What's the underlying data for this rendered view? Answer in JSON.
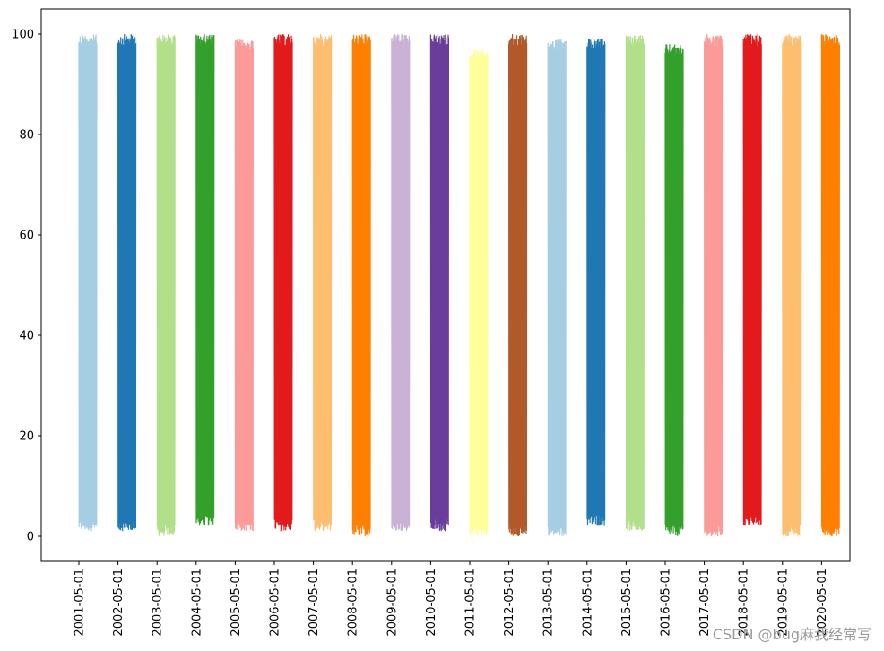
{
  "chart_data": {
    "type": "line",
    "title": "",
    "xlabel": "",
    "ylabel": "",
    "ylim": [
      -5,
      105
    ],
    "grid": false,
    "legend": "none",
    "y_ticks": [
      0,
      20,
      40,
      60,
      80,
      100
    ],
    "categories": [
      "2001-05-01",
      "2002-05-01",
      "2003-05-01",
      "2004-05-01",
      "2005-05-01",
      "2006-05-01",
      "2007-05-01",
      "2008-05-01",
      "2009-05-01",
      "2010-05-01",
      "2011-05-01",
      "2012-05-01",
      "2013-05-01",
      "2014-05-01",
      "2015-05-01",
      "2016-05-01",
      "2017-05-01",
      "2018-05-01",
      "2019-05-01",
      "2020-05-01"
    ],
    "series": [
      {
        "name": "2001",
        "color": "#a6cee3",
        "min": 1,
        "max": 100
      },
      {
        "name": "2002",
        "color": "#1f78b4",
        "min": 1,
        "max": 100
      },
      {
        "name": "2003",
        "color": "#b2df8a",
        "min": 0,
        "max": 100
      },
      {
        "name": "2004",
        "color": "#33a02c",
        "min": 2,
        "max": 100
      },
      {
        "name": "2005",
        "color": "#fb9a99",
        "min": 1,
        "max": 99
      },
      {
        "name": "2006",
        "color": "#e31a1c",
        "min": 1,
        "max": 100
      },
      {
        "name": "2007",
        "color": "#fdbf6f",
        "min": 1,
        "max": 100
      },
      {
        "name": "2008",
        "color": "#ff7f00",
        "min": 0,
        "max": 100
      },
      {
        "name": "2009",
        "color": "#cab2d6",
        "min": 1,
        "max": 100
      },
      {
        "name": "2010",
        "color": "#6a3d9a",
        "min": 1,
        "max": 100
      },
      {
        "name": "2011",
        "color": "#ffff99",
        "min": 0,
        "max": 97
      },
      {
        "name": "2012",
        "color": "#b15928",
        "min": 0,
        "max": 100
      },
      {
        "name": "2013",
        "color": "#a6cee3",
        "min": 0,
        "max": 99
      },
      {
        "name": "2014",
        "color": "#1f78b4",
        "min": 2,
        "max": 99
      },
      {
        "name": "2015",
        "color": "#b2df8a",
        "min": 1,
        "max": 100
      },
      {
        "name": "2016",
        "color": "#33a02c",
        "min": 0,
        "max": 98
      },
      {
        "name": "2017",
        "color": "#fb9a99",
        "min": 0,
        "max": 100
      },
      {
        "name": "2018",
        "color": "#e31a1c",
        "min": 2,
        "max": 100
      },
      {
        "name": "2019",
        "color": "#fdbf6f",
        "min": 0,
        "max": 100
      },
      {
        "name": "2020",
        "color": "#ff7f00",
        "min": 0,
        "max": 100
      }
    ]
  },
  "watermark": "CSDN @bug麻我经常写"
}
